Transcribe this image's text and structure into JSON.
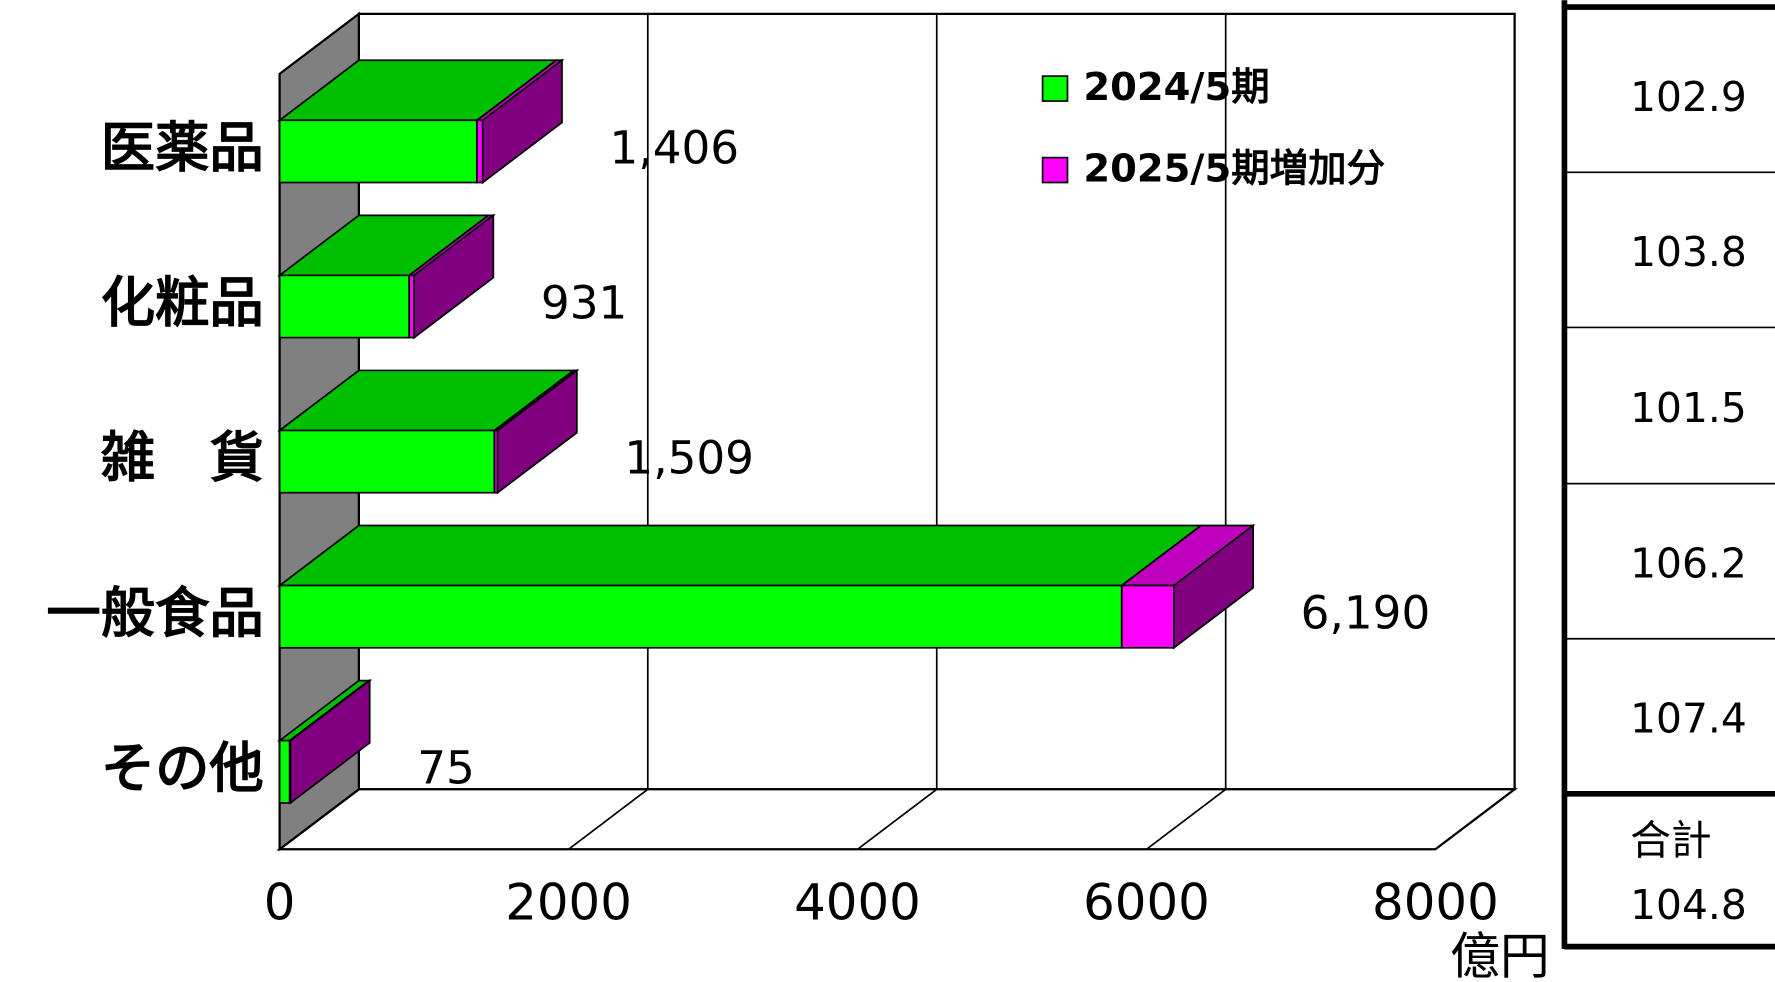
{
  "chart_data": {
    "type": "stacked-bar-3d",
    "categories": [
      "医薬品",
      "化粧品",
      "雑　貨",
      "一般食品",
      "その他"
    ],
    "series": [
      {
        "name": "2024/5期",
        "color": "#00ff00",
        "values": [
          1366,
          897,
          1487,
          5829,
          70
        ]
      },
      {
        "name": "2025/5期増加分",
        "color": "#ff00ff",
        "values": [
          40,
          34,
          22,
          361,
          5
        ]
      }
    ],
    "total_labels": [
      "1,406",
      "931",
      "1,509",
      "6,190",
      "75"
    ],
    "xlim": [
      0,
      8000
    ],
    "xticks": [
      0,
      2000,
      4000,
      6000,
      8000
    ],
    "grid": true,
    "x_unit": "億円"
  },
  "table": {
    "rows": [
      "102.9",
      "103.8",
      "101.5",
      "106.2",
      "107.4"
    ],
    "total_label": "合計",
    "total_value": "104.8"
  }
}
